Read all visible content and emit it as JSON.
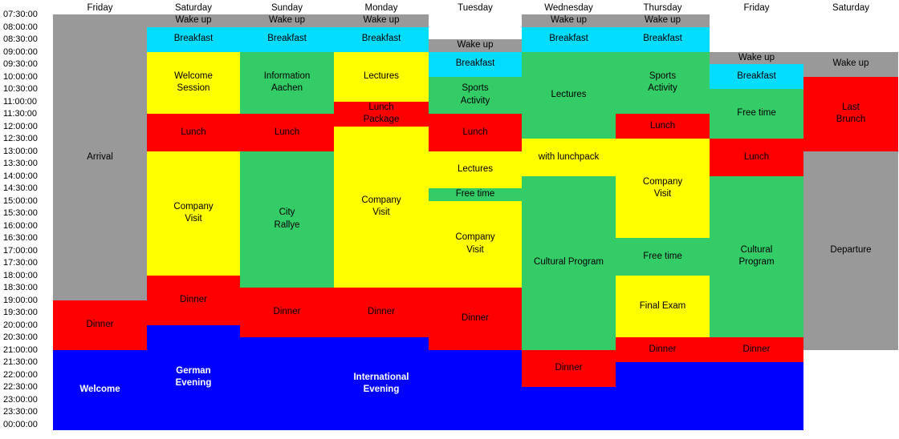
{
  "schedule": {
    "days": [
      "Friday",
      "Saturday",
      "Sunday",
      "Monday",
      "Tuesday",
      "Wednesday",
      "Thursday",
      "Friday",
      "Saturday"
    ],
    "times": [
      "07:30:00",
      "08:00:00",
      "08:30:00",
      "09:00:00",
      "09:30:00",
      "10:00:00",
      "10:30:00",
      "11:00:00",
      "11:30:00",
      "12:00:00",
      "12:30:00",
      "13:00:00",
      "13:30:00",
      "14:00:00",
      "14:30:00",
      "15:00:00",
      "15:30:00",
      "16:00:00",
      "16:30:00",
      "17:00:00",
      "17:30:00",
      "18:00:00",
      "18:30:00",
      "19:00:00",
      "19:30:00",
      "20:00:00",
      "20:30:00",
      "21:00:00",
      "21:30:00",
      "22:00:00",
      "22:30:00",
      "23:00:00",
      "23:30:00",
      "00:00:00"
    ],
    "colors": {
      "gray": "#999999",
      "cyan": "#00ddff",
      "yellow": "#ffff00",
      "green": "#33cc66",
      "red": "#ff0000",
      "blue": "#0000ff"
    },
    "events": [
      {
        "day": 0,
        "start": "07:30",
        "end": "19:00",
        "label": "Arrival",
        "color": "gray"
      },
      {
        "day": 0,
        "start": "19:00",
        "end": "21:00",
        "label": "Dinner",
        "color": "red"
      },
      {
        "day": 0,
        "start": "21:00",
        "end": "00:15",
        "label": "Welcome",
        "color": "blue"
      },
      {
        "day": 1,
        "start": "07:30",
        "end": "08:00",
        "label": "Wake up",
        "color": "gray"
      },
      {
        "day": 1,
        "start": "08:00",
        "end": "09:00",
        "label": "Breakfast",
        "color": "cyan"
      },
      {
        "day": 1,
        "start": "09:00",
        "end": "11:30",
        "label": "Welcome\nSession",
        "color": "yellow"
      },
      {
        "day": 1,
        "start": "11:30",
        "end": "13:00",
        "label": "Lunch",
        "color": "red"
      },
      {
        "day": 1,
        "start": "13:00",
        "end": "18:00",
        "label": "Company\nVisit",
        "color": "yellow"
      },
      {
        "day": 1,
        "start": "18:00",
        "end": "20:00",
        "label": "Dinner",
        "color": "red"
      },
      {
        "day": 1,
        "start": "20:00",
        "end": "00:15",
        "label": "German\nEvening",
        "color": "blue"
      },
      {
        "day": 2,
        "start": "07:30",
        "end": "08:00",
        "label": "Wake up",
        "color": "gray"
      },
      {
        "day": 2,
        "start": "08:00",
        "end": "09:00",
        "label": "Breakfast",
        "color": "cyan"
      },
      {
        "day": 2,
        "start": "09:00",
        "end": "11:30",
        "label": "Information\nAachen",
        "color": "green"
      },
      {
        "day": 2,
        "start": "11:30",
        "end": "13:00",
        "label": "Lunch",
        "color": "red"
      },
      {
        "day": 2,
        "start": "13:00",
        "end": "18:30",
        "label": "City\nRallye",
        "color": "green"
      },
      {
        "day": 2,
        "start": "18:30",
        "end": "20:30",
        "label": "Dinner",
        "color": "red"
      },
      {
        "day": 2,
        "start": "20:30",
        "end": "00:15",
        "label": "",
        "color": "blue"
      },
      {
        "day": 3,
        "start": "07:30",
        "end": "08:00",
        "label": "Wake up",
        "color": "gray"
      },
      {
        "day": 3,
        "start": "08:00",
        "end": "09:00",
        "label": "Breakfast",
        "color": "cyan"
      },
      {
        "day": 3,
        "start": "09:00",
        "end": "11:00",
        "label": "Lectures",
        "color": "yellow"
      },
      {
        "day": 3,
        "start": "11:00",
        "end": "12:00",
        "label": "Lunch\nPackage",
        "color": "red"
      },
      {
        "day": 3,
        "start": "12:00",
        "end": "18:30",
        "label": "Company\nVisit",
        "color": "yellow"
      },
      {
        "day": 3,
        "start": "18:30",
        "end": "20:30",
        "label": "Dinner",
        "color": "red"
      },
      {
        "day": 3,
        "start": "20:30",
        "end": "00:15",
        "label": "International\nEvening",
        "color": "blue"
      },
      {
        "day": 4,
        "start": "08:30",
        "end": "09:00",
        "label": "Wake up",
        "color": "gray"
      },
      {
        "day": 4,
        "start": "09:00",
        "end": "10:00",
        "label": "Breakfast",
        "color": "cyan"
      },
      {
        "day": 4,
        "start": "10:00",
        "end": "11:30",
        "label": "Sports\nActivity",
        "color": "green"
      },
      {
        "day": 4,
        "start": "11:30",
        "end": "13:00",
        "label": "Lunch",
        "color": "red"
      },
      {
        "day": 4,
        "start": "13:00",
        "end": "14:30",
        "label": "Lectures",
        "color": "yellow"
      },
      {
        "day": 4,
        "start": "14:30",
        "end": "15:00",
        "label": "Free time",
        "color": "green"
      },
      {
        "day": 4,
        "start": "15:00",
        "end": "18:30",
        "label": "Company\nVisit",
        "color": "yellow"
      },
      {
        "day": 4,
        "start": "18:30",
        "end": "21:00",
        "label": "Dinner",
        "color": "red"
      },
      {
        "day": 4,
        "start": "21:00",
        "end": "00:15",
        "label": "",
        "color": "blue"
      },
      {
        "day": 5,
        "start": "07:30",
        "end": "08:00",
        "label": "Wake up",
        "color": "gray"
      },
      {
        "day": 5,
        "start": "08:00",
        "end": "09:00",
        "label": "Breakfast",
        "color": "cyan"
      },
      {
        "day": 5,
        "start": "09:00",
        "end": "12:30",
        "label": "Lectures",
        "color": "green"
      },
      {
        "day": 5,
        "start": "12:30",
        "end": "14:00",
        "label": "with lunchpack",
        "color": "yellow"
      },
      {
        "day": 5,
        "start": "14:00",
        "end": "21:00",
        "label": "Cultural Program",
        "color": "green"
      },
      {
        "day": 5,
        "start": "21:00",
        "end": "22:30",
        "label": "Dinner",
        "color": "red"
      },
      {
        "day": 5,
        "start": "22:30",
        "end": "00:15",
        "label": "",
        "color": "blue"
      },
      {
        "day": 6,
        "start": "07:30",
        "end": "08:00",
        "label": "Wake up",
        "color": "gray"
      },
      {
        "day": 6,
        "start": "08:00",
        "end": "09:00",
        "label": "Breakfast",
        "color": "cyan"
      },
      {
        "day": 6,
        "start": "09:00",
        "end": "11:30",
        "label": "Sports\nActivity",
        "color": "green"
      },
      {
        "day": 6,
        "start": "11:30",
        "end": "12:30",
        "label": "Lunch",
        "color": "red"
      },
      {
        "day": 6,
        "start": "12:30",
        "end": "16:30",
        "label": "Company\nVisit",
        "color": "yellow"
      },
      {
        "day": 6,
        "start": "16:30",
        "end": "18:00",
        "label": "Free time",
        "color": "green"
      },
      {
        "day": 6,
        "start": "18:00",
        "end": "20:30",
        "label": "Final Exam",
        "color": "yellow"
      },
      {
        "day": 6,
        "start": "20:30",
        "end": "21:30",
        "label": "Dinner",
        "color": "red"
      },
      {
        "day": 6,
        "start": "21:30",
        "end": "00:15",
        "label": "",
        "color": "blue"
      },
      {
        "day": 7,
        "start": "09:00",
        "end": "09:30",
        "label": "Wake up",
        "color": "gray"
      },
      {
        "day": 7,
        "start": "09:30",
        "end": "10:30",
        "label": "Breakfast",
        "color": "cyan"
      },
      {
        "day": 7,
        "start": "10:30",
        "end": "12:30",
        "label": "Free time",
        "color": "green"
      },
      {
        "day": 7,
        "start": "12:30",
        "end": "14:00",
        "label": "Lunch",
        "color": "red"
      },
      {
        "day": 7,
        "start": "14:00",
        "end": "20:30",
        "label": "Cultural\nProgram",
        "color": "green"
      },
      {
        "day": 7,
        "start": "20:30",
        "end": "21:30",
        "label": "Dinner",
        "color": "red"
      },
      {
        "day": 7,
        "start": "21:30",
        "end": "00:15",
        "label": "",
        "color": "blue"
      },
      {
        "day": 8,
        "start": "09:00",
        "end": "10:00",
        "label": "Wake up",
        "color": "gray"
      },
      {
        "day": 8,
        "start": "10:00",
        "end": "13:00",
        "label": "Last\nBrunch",
        "color": "red"
      },
      {
        "day": 8,
        "start": "13:00",
        "end": "21:00",
        "label": "Departure",
        "color": "gray"
      }
    ]
  }
}
